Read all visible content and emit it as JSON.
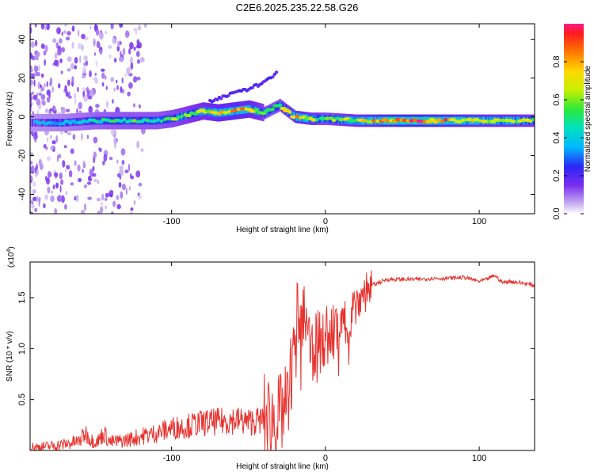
{
  "title": "C2E6.2025.235.22.58.G26",
  "colors": {
    "snr_line": "#e8322e",
    "axis": "#000000",
    "background": "#ffffff"
  },
  "chart_data": [
    {
      "type": "heatmap",
      "xlabel": "Height of straight line (km)",
      "ylabel": "Frequency (Hz)",
      "xlim": [
        -192,
        136
      ],
      "ylim": [
        -50,
        48
      ],
      "xticks": [
        -100,
        0,
        100
      ],
      "yticks": [
        -40,
        -20,
        0,
        20,
        40
      ],
      "colorbar": {
        "label": "Normalized spectral amplitude",
        "range": [
          0,
          1
        ],
        "ticks": [
          0.0,
          0.2,
          0.4,
          0.6,
          0.8
        ],
        "tick_labels": [
          "0.0",
          "0.2",
          "0.4",
          "0.6",
          "0.8"
        ]
      },
      "ridge": {
        "x": [
          -190,
          -170,
          -150,
          -130,
          -110,
          -100,
          -90,
          -80,
          -70,
          -60,
          -50,
          -40,
          -35,
          -30,
          -25,
          -20,
          -10,
          0,
          20,
          40,
          60,
          80,
          100,
          120,
          135
        ],
        "freq": [
          -3,
          -3,
          -2,
          -2,
          -2,
          -1,
          1,
          3,
          2,
          3,
          4,
          2,
          4,
          6,
          3,
          0,
          -1,
          -1,
          -2,
          -2,
          -2,
          -2,
          -2,
          -2,
          -2
        ],
        "amplitude": [
          0.35,
          0.4,
          0.5,
          0.55,
          0.55,
          0.6,
          0.65,
          0.7,
          0.8,
          0.85,
          0.8,
          0.6,
          0.55,
          0.6,
          0.7,
          0.8,
          0.7,
          0.6,
          0.7,
          0.9,
          0.95,
          0.85,
          0.75,
          0.7,
          0.65
        ]
      },
      "side_branch": {
        "x": [
          -75,
          -65,
          -55,
          -45,
          -35,
          -31
        ],
        "freq": [
          8,
          11,
          13,
          16,
          20,
          24
        ]
      }
    },
    {
      "type": "line",
      "xlabel": "Height of straight line (km)",
      "ylabel": "SNR (10 * v/v)",
      "y_multiplier": "(x10",
      "y_multiplier_exp": "4",
      "y_multiplier_close": ")",
      "xlim": [
        -192,
        136
      ],
      "ylim": [
        0,
        1.85
      ],
      "xticks": [
        -100,
        0,
        100
      ],
      "yticks": [
        0.5,
        1.0,
        1.5
      ],
      "ytick_labels": [
        "0.5",
        "1.0",
        "1.5"
      ],
      "series": [
        {
          "name": "SNR",
          "x": [
            -192,
            -180,
            -170,
            -160,
            -156,
            -152,
            -148,
            -144,
            -140,
            -130,
            -120,
            -110,
            -100,
            -90,
            -80,
            -70,
            -60,
            -50,
            -40,
            -30,
            -25,
            -22,
            -20,
            -18,
            -15,
            -12,
            -10,
            -5,
            0,
            5,
            10,
            15,
            20,
            25,
            30,
            35,
            40,
            50,
            60,
            70,
            80,
            90,
            100,
            105,
            110,
            115,
            120,
            130,
            136
          ],
          "values": [
            0.03,
            0.04,
            0.06,
            0.09,
            0.17,
            0.1,
            0.09,
            0.17,
            0.08,
            0.1,
            0.14,
            0.17,
            0.22,
            0.24,
            0.27,
            0.28,
            0.3,
            0.28,
            0.3,
            0.32,
            0.45,
            0.8,
            1.1,
            1.3,
            1.35,
            1.1,
            1.0,
            1.05,
            1.12,
            1.15,
            1.2,
            1.3,
            1.45,
            1.55,
            1.62,
            1.65,
            1.68,
            1.68,
            1.68,
            1.69,
            1.69,
            1.7,
            1.66,
            1.68,
            1.72,
            1.65,
            1.66,
            1.64,
            1.62
          ]
        }
      ]
    }
  ]
}
